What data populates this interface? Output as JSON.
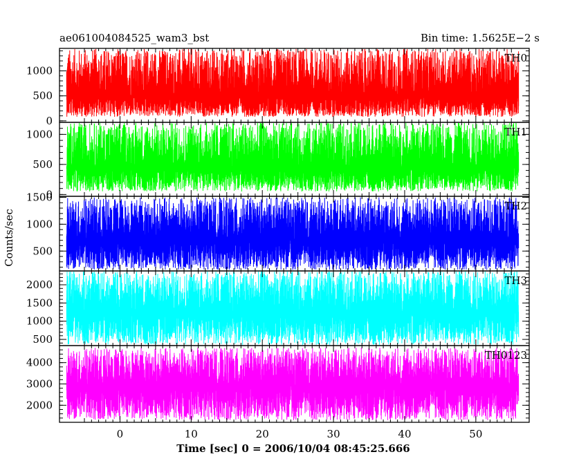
{
  "header": {
    "title": "ae061004084525_wam3_bst",
    "bin_time": "Bin time: 1.5625E−2 s"
  },
  "chart_data": {
    "type": "line",
    "title": "ae061004084525_wam3_bst",
    "subtitle": "Bin time: 1.5625E−2 s",
    "xlabel": "Time [sec] 0 = 2006/10/04 08:45:25.666",
    "ylabel": "Counts/sec",
    "xlim": [
      -8.5,
      57.5
    ],
    "x_data_range": [
      -7.5,
      56.0
    ],
    "x_ticks": [
      0,
      10,
      20,
      30,
      40,
      50
    ],
    "grid": false,
    "panels": [
      {
        "name": "TH0",
        "color": "#ff0000",
        "ylim": [
          -30,
          1450
        ],
        "y_ticks": [
          0,
          500,
          1000
        ],
        "approx_mean": 500,
        "approx_min": 80,
        "approx_max": 1450
      },
      {
        "name": "TH1",
        "color": "#00ff00",
        "ylim": [
          -30,
          1200
        ],
        "y_ticks": [
          0,
          500,
          1000
        ],
        "approx_mean": 450,
        "approx_min": 50,
        "approx_max": 1200
      },
      {
        "name": "TH2",
        "color": "#0000ff",
        "ylim": [
          130,
          1520
        ],
        "y_ticks": [
          500,
          1000,
          1500
        ],
        "approx_mean": 700,
        "approx_min": 150,
        "approx_max": 1500
      },
      {
        "name": "TH3",
        "color": "#00ffff",
        "ylim": [
          330,
          2380
        ],
        "y_ticks": [
          500,
          1000,
          1500,
          2000
        ],
        "approx_mean": 1250,
        "approx_min": 350,
        "approx_max": 2380
      },
      {
        "name": "TH0123",
        "color": "#ff00ff",
        "ylim": [
          1200,
          4800
        ],
        "y_ticks": [
          2000,
          3000,
          4000
        ],
        "approx_mean": 2900,
        "approx_min": 1300,
        "approx_max": 4700
      }
    ]
  }
}
